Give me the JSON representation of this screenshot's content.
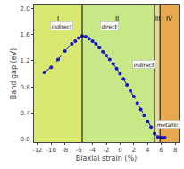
{
  "chart_data": {
    "type": "line",
    "xlabel": "Biaxial strain (%)",
    "ylabel": "Band gap (eV)",
    "xlim": [
      -12.5,
      8.5
    ],
    "ylim": [
      -0.05,
      2.05
    ],
    "xticks": [
      -12,
      -10,
      -8,
      -6,
      -4,
      -2,
      0,
      2,
      4,
      6,
      8
    ],
    "yticks": [
      {
        "value": 0.0,
        "label": "0.0"
      },
      0.4,
      0.8,
      1.2,
      1.6,
      {
        "value": 2.0,
        "label": "2.0"
      }
    ],
    "grid": false,
    "x": [
      -11,
      -10,
      -9,
      -8,
      -7,
      -6.5,
      -6,
      -5.5,
      -5,
      -4.5,
      -4,
      -3.5,
      -3,
      -2.5,
      -2,
      -1.5,
      -1,
      -0.5,
      0,
      0.5,
      1,
      1.5,
      2,
      2.5,
      3,
      3.5,
      4,
      4.5,
      5,
      5.5,
      6,
      6.5
    ],
    "series": [
      {
        "color": "#1515cc",
        "marker": "circle",
        "line_style": "dashed",
        "values": [
          1.02,
          1.1,
          1.22,
          1.35,
          1.46,
          1.5,
          1.55,
          1.58,
          1.57,
          1.54,
          1.5,
          1.46,
          1.4,
          1.34,
          1.28,
          1.22,
          1.15,
          1.08,
          1.0,
          0.92,
          0.83,
          0.74,
          0.65,
          0.55,
          0.45,
          0.36,
          0.27,
          0.18,
          0.08,
          0.03,
          0.02,
          0.02
        ]
      }
    ],
    "regions": [
      {
        "xmin": -12.5,
        "xmax": -5.5,
        "color": "#d8e870",
        "label": "I",
        "label_x": -9.0,
        "label_y": 1.93
      },
      {
        "xmin": -5.5,
        "xmax": 5.0,
        "color": "#c8e888",
        "label": "II",
        "label_x": -0.5,
        "label_y": 1.93
      },
      {
        "xmin": 5.0,
        "xmax": 5.8,
        "color": "#e8d898",
        "label": "III",
        "label_x": 5.4,
        "label_y": 1.93
      },
      {
        "xmin": 5.8,
        "xmax": 8.5,
        "color": "#e8a850",
        "label": "IV",
        "label_x": 7.1,
        "label_y": 1.93
      }
    ],
    "vlines": [
      -5.5,
      5.0,
      5.8
    ],
    "annotations": [
      {
        "x": -8.5,
        "y": 1.73,
        "text": "indirect"
      },
      {
        "x": -1.5,
        "y": 1.73,
        "text": "direct"
      },
      {
        "x": 3.5,
        "y": 1.15,
        "text": "indirect"
      },
      {
        "x": 7.0,
        "y": 0.22,
        "text": "metallic"
      }
    ]
  }
}
